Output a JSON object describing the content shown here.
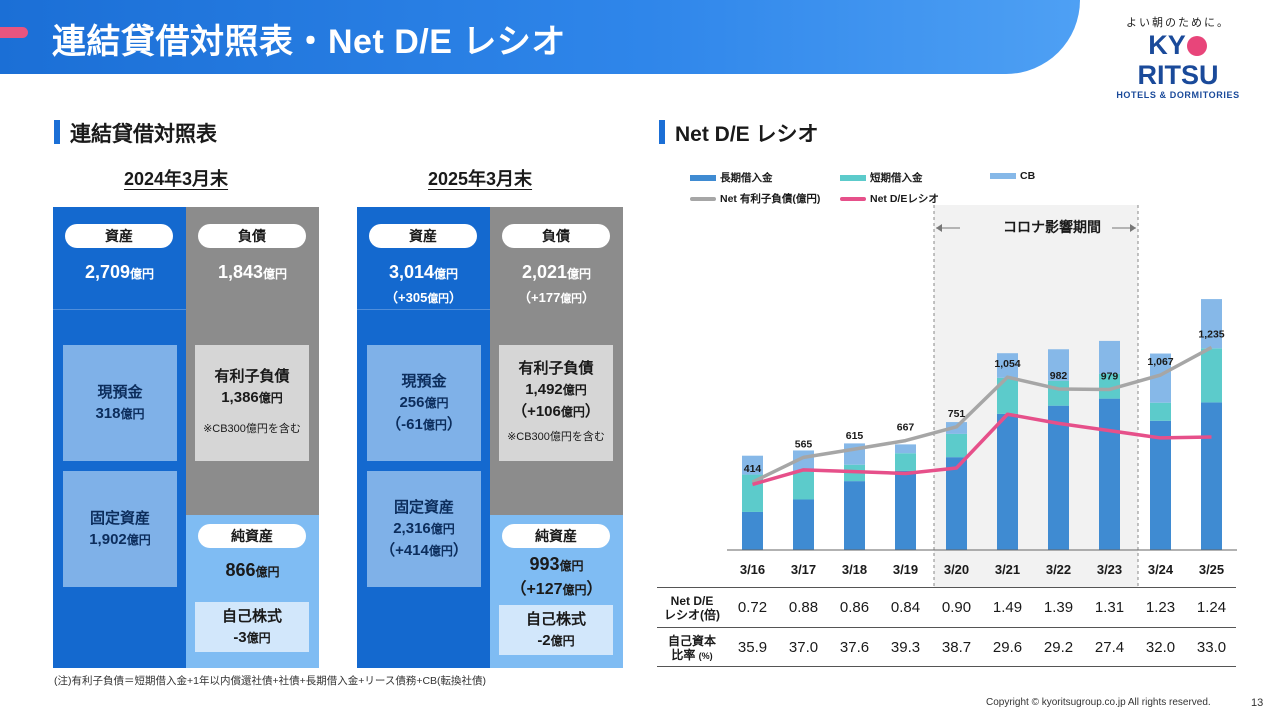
{
  "header": {
    "title": "連結貸借対照表・Net D/E レシオ",
    "logo_tagline": "よい朝のために。",
    "logo_name_pre": "KY",
    "logo_name_post": "RITSU",
    "logo_sub": "HOTELS & DORMITORIES"
  },
  "balance_sheet": {
    "section_title": "連結貸借対照表",
    "y2024": {
      "year_label": "2024年3月末",
      "assets_label": "資産",
      "liabilities_label": "負債",
      "assets_total": "2,709",
      "liabilities_total": "1,843",
      "unit": "億円",
      "cash_label": "現預金",
      "cash_value": "318",
      "debt_label": "有利子負債",
      "debt_value": "1,386",
      "debt_note": "※CB300億円を含む",
      "fixed_label": "固定資産",
      "fixed_value": "1,902",
      "equity_label": "純資産",
      "equity_value": "866",
      "treasury_label": "自己株式",
      "treasury_value": "-3"
    },
    "y2025": {
      "year_label": "2025年3月末",
      "assets_label": "資産",
      "liabilities_label": "負債",
      "assets_total": "3,014",
      "assets_change_pre": "（+305",
      "assets_change_post": "）",
      "liabilities_total": "2,021",
      "liabilities_change_pre": "（+177",
      "liabilities_change_post": "）",
      "unit": "億円",
      "cash_label": "現預金",
      "cash_value": "256",
      "cash_change_pre": "（-61",
      "cash_change_post": "）",
      "debt_label": "有利子負債",
      "debt_value": "1,492",
      "debt_change_pre": "（+106",
      "debt_change_post": "）",
      "debt_note": "※CB300億円を含む",
      "fixed_label": "固定資産",
      "fixed_value": "2,316",
      "fixed_change_pre": "（+414",
      "fixed_change_post": "）",
      "equity_label": "純資産",
      "equity_value": "993",
      "equity_change_pre": "（+127",
      "equity_change_post": "）",
      "treasury_label": "自己株式",
      "treasury_value": "-2"
    },
    "footnote": "(注)有利子負債＝短期借入金+1年以内償還社債+社債+長期借入金+リース債務+CB(転換社債)"
  },
  "colors": {
    "asset_blue": "#1469cf",
    "liability_gray": "#8c8c8c",
    "equity_lightblue": "#7fbcf3",
    "long_term_loan": "#3f8bd2",
    "short_term_loan": "#5ccbcb",
    "cb": "#86b8e8",
    "net_debt_line": "#a6a6a6",
    "de_ratio_line": "#e6508a"
  },
  "chart_data": {
    "type": "bar",
    "title": "Net D/E レシオ",
    "categories": [
      "3/16",
      "3/17",
      "3/18",
      "3/19",
      "3/20",
      "3/21",
      "3/22",
      "3/23",
      "3/24",
      "3/25"
    ],
    "series": [
      {
        "name": "長期借入金",
        "kind": "stacked-bar",
        "values": [
          232,
          308,
          420,
          482,
          566,
          830,
          880,
          923,
          788,
          900
        ]
      },
      {
        "name": "短期借入金",
        "kind": "stacked-bar",
        "values": [
          228,
          172,
          100,
          108,
          142,
          220,
          152,
          152,
          110,
          330
        ]
      },
      {
        "name": "CB",
        "kind": "stacked-bar",
        "values": [
          115,
          127,
          130,
          54,
          72,
          150,
          192,
          200,
          300,
          300
        ]
      },
      {
        "name": "Net 有利子負債(億円)",
        "kind": "line",
        "values": [
          414,
          565,
          615,
          667,
          751,
          1054,
          982,
          979,
          1067,
          1235
        ]
      },
      {
        "name": "Net D/Eレシオ",
        "kind": "line",
        "values": [
          0.72,
          0.88,
          0.86,
          0.84,
          0.9,
          1.49,
          1.39,
          1.31,
          1.23,
          1.24
        ]
      }
    ],
    "net_debt_labels": [
      "414",
      "565",
      "615",
      "667",
      "751",
      "1,054",
      "982",
      "979",
      "1,067",
      "1,235"
    ],
    "bar_ylim": [
      0,
      1500
    ],
    "ratio_ylim": [
      0,
      2.7
    ],
    "annotation": "コロナ影響期間",
    "covid_period": [
      "3/20",
      "3/23"
    ],
    "table": {
      "row1_label_a": "Net  D/E",
      "row1_label_b": "レシオ(倍)",
      "row1": [
        "0.72",
        "0.88",
        "0.86",
        "0.84",
        "0.90",
        "1.49",
        "1.39",
        "1.31",
        "1.23",
        "1.24"
      ],
      "row2_label_a": "自己資本",
      "row2_label_b": "比率",
      "row2_unit": "(%)",
      "row2": [
        "35.9",
        "37.0",
        "37.6",
        "39.3",
        "38.7",
        "29.6",
        "29.2",
        "27.4",
        "32.0",
        "33.0"
      ]
    }
  },
  "footer": {
    "copyright": "Copyright © kyoritsugroup.co.jp All rights reserved.",
    "page": "13"
  }
}
